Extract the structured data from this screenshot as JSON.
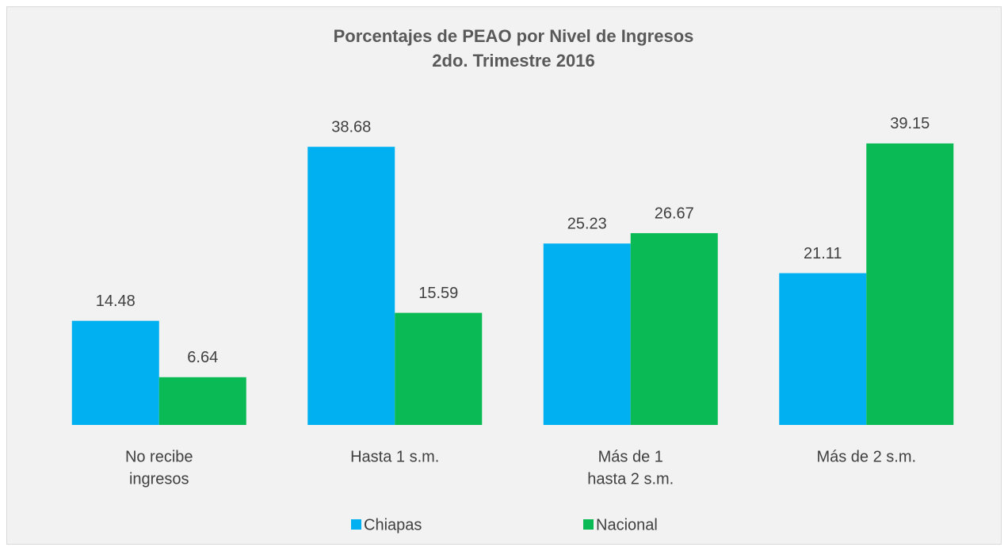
{
  "chart_data": {
    "type": "bar",
    "title": [
      "Porcentajes de PEAO por Nivel de Ingresos",
      "2do. Trimestre 2016"
    ],
    "categories": [
      [
        "No recibe",
        "ingresos"
      ],
      [
        "Hasta 1 s.m."
      ],
      [
        "Más de 1",
        "hasta 2 s.m."
      ],
      [
        "Más de 2 s.m."
      ]
    ],
    "series": [
      {
        "name": "Chiapas",
        "color": "#00b0f0",
        "values": [
          14.48,
          38.68,
          25.23,
          21.11
        ]
      },
      {
        "name": "Nacional",
        "color": "#0aba55",
        "values": [
          6.64,
          15.59,
          26.67,
          39.15
        ]
      }
    ],
    "legend": "bottom"
  }
}
